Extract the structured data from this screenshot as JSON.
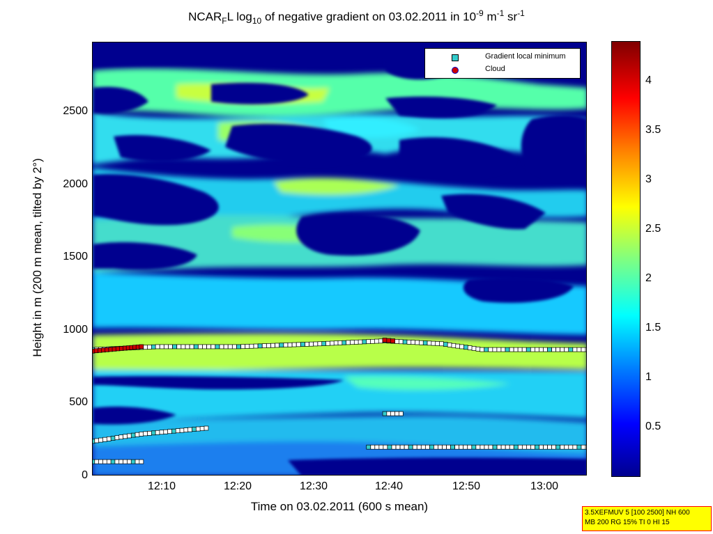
{
  "title": {
    "pre": "NCAR",
    "sub1": "F",
    "mid": "L log",
    "sub2": "10",
    "post": " of negative gradient on 03.02.2011 in 10",
    "sup1": "-9",
    "post2": " m",
    "sup2": "-1",
    "post3": " sr",
    "sup3": "-1"
  },
  "legend": {
    "min_label": "Gradient local minimum",
    "cloud_label": "Cloud",
    "min_color": "#33cccc",
    "cloud_color": "#cc0000"
  },
  "colorbar_ticks": [
    "4",
    "3.5",
    "3",
    "2.5",
    "2",
    "1.5",
    "1",
    "0.5"
  ],
  "infobox": {
    "line1": "3.5XEFMUV 5 [100 2500] NH 600",
    "line2": "MB 200 RG 15% TI 0 HI 15"
  },
  "chart_data": {
    "type": "heatmap",
    "xlabel": "Time on 03.02.2011 (600 s mean)",
    "ylabel": "Height in m (200 m mean, tilted by 2°)",
    "xlim": [
      "12:02",
      "13:03"
    ],
    "ylim": [
      0,
      2980
    ],
    "clim": [
      0,
      4.4
    ],
    "x_ticks": [
      "12:10",
      "12:20",
      "12:30",
      "12:40",
      "12:50",
      "13:00"
    ],
    "y_ticks": [
      "0",
      "500",
      "1000",
      "1500",
      "2000",
      "2500"
    ],
    "series": [
      {
        "name": "Gradient local minimum",
        "points": [
          {
            "x": "12:02",
            "y": 870
          },
          {
            "x": "12:10",
            "y": 890
          },
          {
            "x": "12:20",
            "y": 890
          },
          {
            "x": "12:30",
            "y": 910
          },
          {
            "x": "12:38",
            "y": 930
          },
          {
            "x": "12:45",
            "y": 910
          },
          {
            "x": "12:50",
            "y": 870
          },
          {
            "x": "13:03",
            "y": 870
          },
          {
            "x": "12:02",
            "y": 240
          },
          {
            "x": "12:08",
            "y": 290
          },
          {
            "x": "12:16",
            "y": 330
          },
          {
            "x": "12:02",
            "y": 100
          },
          {
            "x": "12:08",
            "y": 100
          },
          {
            "x": "12:38",
            "y": 430
          },
          {
            "x": "12:40",
            "y": 430
          },
          {
            "x": "12:36",
            "y": 200
          },
          {
            "x": "13:03",
            "y": 200
          }
        ]
      },
      {
        "name": "Cloud",
        "points": [
          {
            "x": "12:02",
            "y": 860
          },
          {
            "x": "12:06",
            "y": 880
          },
          {
            "x": "12:08",
            "y": 890
          },
          {
            "x": "12:38",
            "y": 935
          },
          {
            "x": "12:39",
            "y": 930
          }
        ]
      }
    ]
  }
}
